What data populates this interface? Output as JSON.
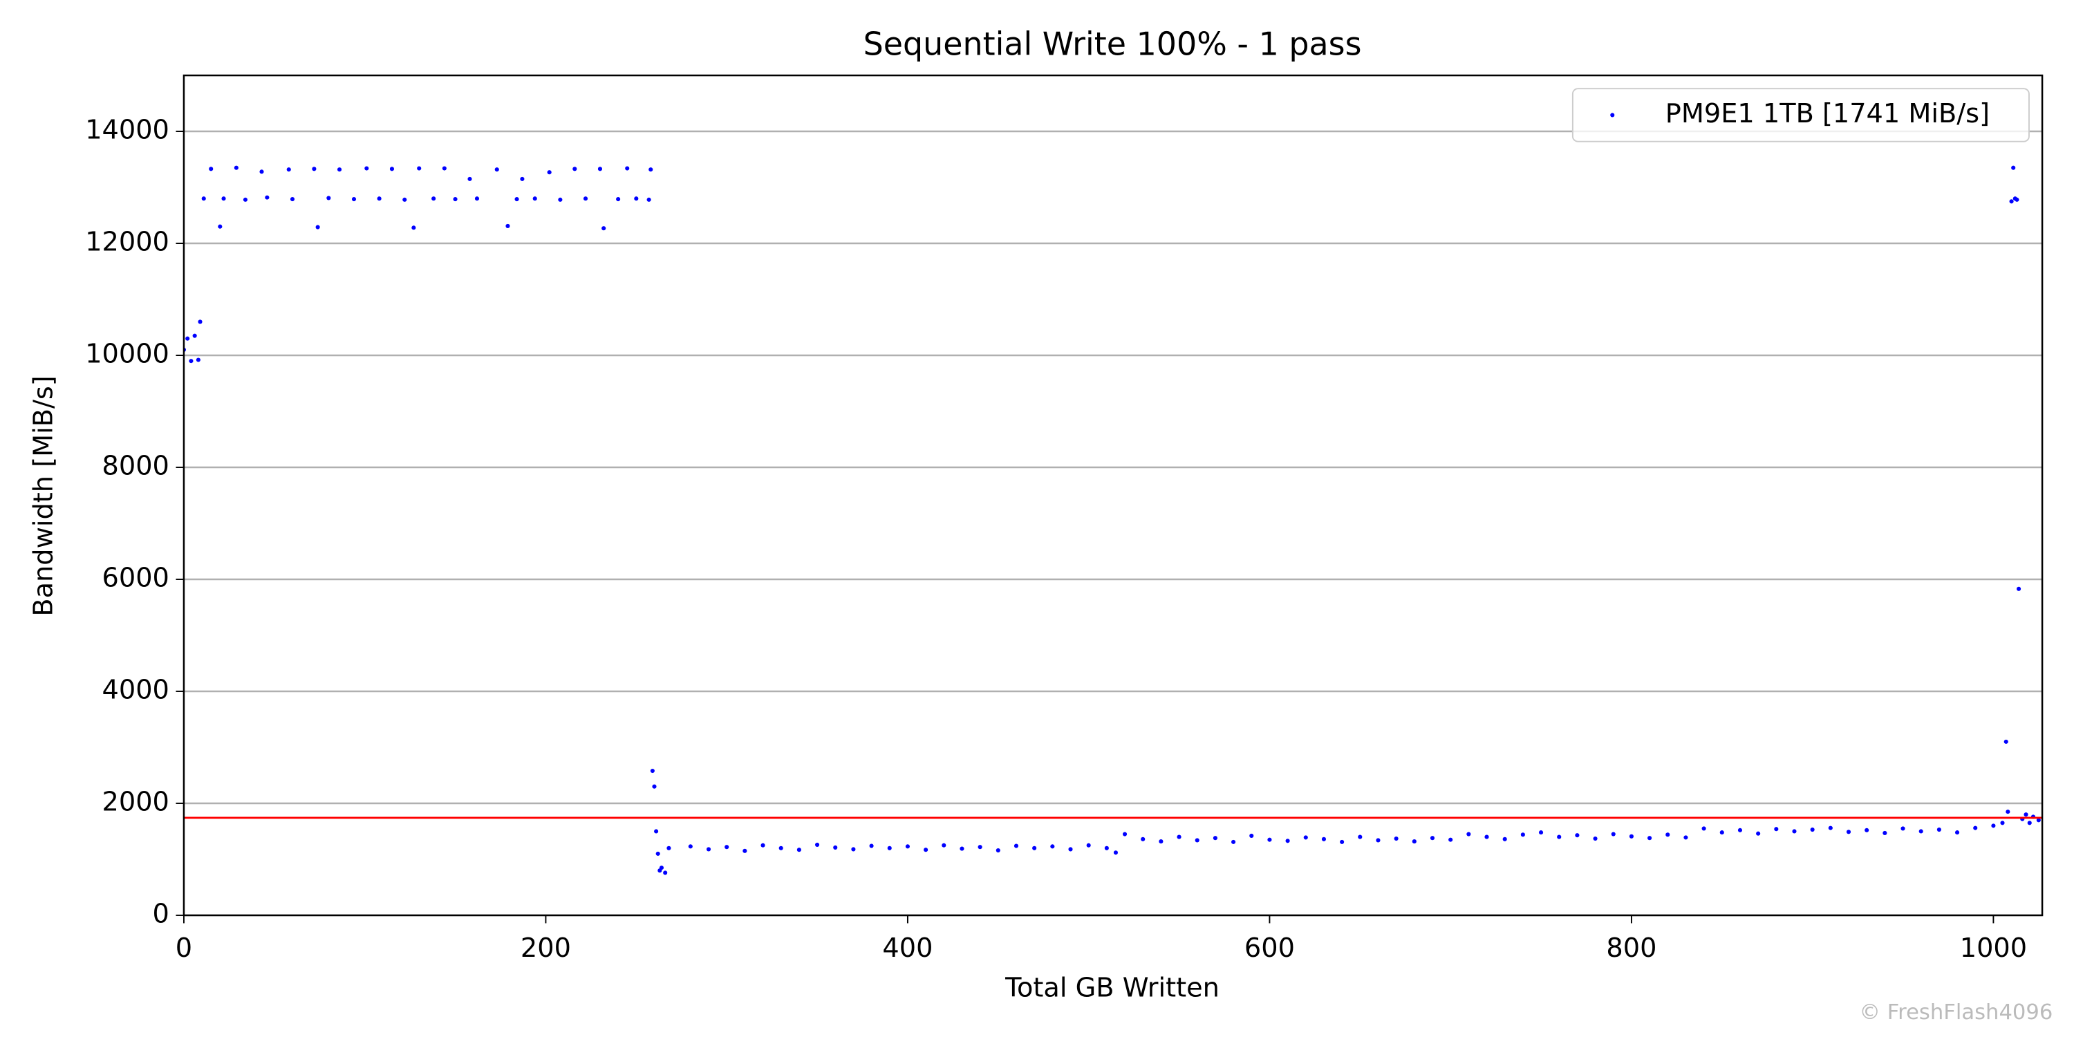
{
  "chart_data": {
    "type": "scatter",
    "title": "Sequential Write 100% - 1 pass",
    "x_label": "Total GB Written",
    "y_label": "Bandwidth [MiB/s]",
    "watermark": "© FreshFlash4096",
    "xlim": [
      0,
      1027
    ],
    "ylim": [
      0,
      15000
    ],
    "xticks": [
      0,
      200,
      400,
      600,
      800,
      1000
    ],
    "yticks": [
      0,
      2000,
      4000,
      6000,
      8000,
      10000,
      12000,
      14000
    ],
    "grid": "y",
    "legend": "upper right",
    "reference_line": {
      "value": 1741,
      "color": "#ff0000"
    },
    "series": [
      {
        "name": "PM9E1 1TB [1741 MiB/s]",
        "color": "#0000ff",
        "x": [
          0,
          2,
          4,
          6,
          8,
          9,
          11,
          15,
          20,
          22,
          29,
          34,
          43,
          46,
          58,
          60,
          72,
          74,
          80,
          86,
          94,
          101,
          108,
          115,
          122,
          127,
          130,
          138,
          144,
          150,
          158,
          162,
          173,
          179,
          184,
          187,
          194,
          202,
          208,
          216,
          222,
          230,
          232,
          240,
          245,
          250,
          257,
          258,
          259,
          260,
          261,
          262,
          263,
          264,
          266,
          268,
          280,
          290,
          300,
          310,
          320,
          330,
          340,
          350,
          360,
          370,
          380,
          390,
          400,
          410,
          420,
          430,
          440,
          450,
          460,
          470,
          480,
          490,
          500,
          510,
          515,
          520,
          530,
          540,
          550,
          560,
          570,
          580,
          590,
          600,
          610,
          620,
          630,
          640,
          650,
          660,
          670,
          680,
          690,
          700,
          710,
          720,
          730,
          740,
          750,
          760,
          770,
          780,
          790,
          800,
          810,
          820,
          830,
          840,
          850,
          860,
          870,
          880,
          890,
          900,
          910,
          920,
          930,
          940,
          950,
          960,
          970,
          980,
          990,
          1000,
          1005,
          1007,
          1008,
          1010,
          1011,
          1012,
          1013,
          1014,
          1016,
          1018,
          1020,
          1022,
          1025
        ],
        "values": [
          10100,
          10300,
          9900,
          10350,
          9920,
          10600,
          12800,
          13330,
          12300,
          12800,
          13350,
          12780,
          13280,
          12820,
          13320,
          12790,
          13330,
          12290,
          12810,
          13320,
          12790,
          13340,
          12800,
          13330,
          12780,
          12280,
          13340,
          12800,
          13340,
          12790,
          13150,
          12800,
          13320,
          12310,
          12790,
          13150,
          12800,
          13270,
          12780,
          13330,
          12800,
          13330,
          12270,
          12790,
          13340,
          12800,
          12780,
          13320,
          2580,
          2300,
          1500,
          1100,
          800,
          850,
          760,
          1200,
          1230,
          1180,
          1220,
          1150,
          1250,
          1200,
          1170,
          1260,
          1210,
          1180,
          1240,
          1200,
          1230,
          1170,
          1250,
          1190,
          1220,
          1160,
          1240,
          1200,
          1230,
          1180,
          1250,
          1200,
          1120,
          1450,
          1360,
          1320,
          1400,
          1340,
          1380,
          1310,
          1420,
          1350,
          1330,
          1390,
          1360,
          1310,
          1400,
          1340,
          1370,
          1320,
          1380,
          1350,
          1450,
          1400,
          1360,
          1440,
          1480,
          1400,
          1430,
          1370,
          1450,
          1410,
          1380,
          1440,
          1390,
          1550,
          1480,
          1520,
          1460,
          1540,
          1500,
          1530,
          1560,
          1490,
          1520,
          1470,
          1550,
          1500,
          1530,
          1480,
          1560,
          1600,
          1650,
          3100,
          1850,
          12750,
          13350,
          12800,
          12780,
          5830,
          1720,
          1800,
          1650,
          1760,
          1700
        ]
      }
    ]
  }
}
